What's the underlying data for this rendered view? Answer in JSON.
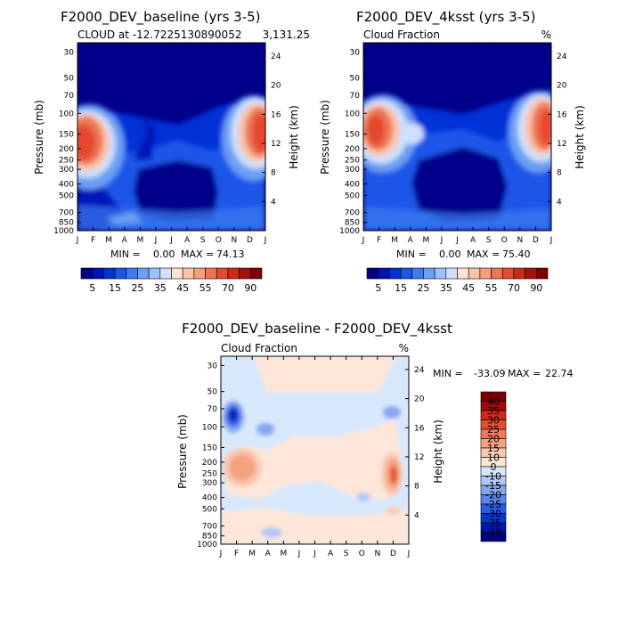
{
  "chart_data": [
    {
      "type": "heatmap",
      "title": "F2000_DEV_baseline (yrs 3-5)",
      "subtitle": "CLOUD at -12.7225130890052",
      "subtitle_right": "3,131.25",
      "ylabel": "Pressure (mb)",
      "ylabel_right": "Height (km)",
      "x_ticks": [
        "J",
        "F",
        "M",
        "A",
        "M",
        "J",
        "J",
        "A",
        "S",
        "O",
        "N",
        "D",
        "J"
      ],
      "y_ticks": [
        "30",
        "50",
        "70",
        "100",
        "150",
        "200",
        "250",
        "300",
        "400",
        "500",
        "700",
        "850",
        "1000"
      ],
      "y_ticks_right": [
        "24",
        "20",
        "16",
        "12",
        "8",
        "4"
      ],
      "stats": {
        "min_label": "MIN =",
        "min": "0.00",
        "max_label": "MAX =",
        "max": "74.13"
      },
      "colorbar": {
        "orientation": "horizontal",
        "labels": [
          "5",
          "15",
          "25",
          "35",
          "45",
          "55",
          "70",
          "90"
        ]
      },
      "features": [
        {
          "month": 1.0,
          "plev": 170,
          "value": 73
        },
        {
          "month": 11.6,
          "plev": 150,
          "value": 72
        }
      ]
    },
    {
      "type": "heatmap",
      "title": "F2000_DEV_4ksst (yrs 3-5)",
      "subtitle": "Cloud Fraction",
      "subtitle_right": "%",
      "ylabel": "Pressure (mb)",
      "ylabel_right": "Height (km)",
      "x_ticks": [
        "J",
        "F",
        "M",
        "A",
        "M",
        "J",
        "J",
        "A",
        "S",
        "O",
        "N",
        "D",
        "J"
      ],
      "y_ticks": [
        "30",
        "50",
        "70",
        "100",
        "150",
        "200",
        "250",
        "300",
        "400",
        "500",
        "700",
        "850",
        "1000"
      ],
      "y_ticks_right": [
        "24",
        "20",
        "16",
        "12",
        "8",
        "4"
      ],
      "stats": {
        "min_label": "MIN =",
        "min": "0.00",
        "max_label": "MAX =",
        "max": "75.40"
      },
      "colorbar": {
        "orientation": "horizontal",
        "labels": [
          "5",
          "15",
          "25",
          "35",
          "45",
          "55",
          "70",
          "90"
        ]
      },
      "features": [
        {
          "month": 1.0,
          "plev": 150,
          "value": 75
        },
        {
          "month": 11.8,
          "plev": 150,
          "value": 74
        }
      ]
    },
    {
      "type": "heatmap",
      "title": "F2000_DEV_baseline - F2000_DEV_4ksst",
      "subtitle": "Cloud Fraction",
      "subtitle_right": "%",
      "ylabel": "Pressure (mb)",
      "ylabel_right": "Height (km)",
      "x_ticks": [
        "J",
        "F",
        "M",
        "A",
        "M",
        "J",
        "J",
        "A",
        "S",
        "O",
        "N",
        "D",
        "J"
      ],
      "y_ticks": [
        "30",
        "50",
        "70",
        "100",
        "150",
        "200",
        "250",
        "300",
        "400",
        "500",
        "700",
        "850",
        "1000"
      ],
      "y_ticks_right": [
        "24",
        "20",
        "16",
        "12",
        "8",
        "4"
      ],
      "stats": {
        "min_label": "MIN =",
        "min": "-33.09",
        "max_label": "MAX =",
        "max": "22.74"
      },
      "colorbar": {
        "orientation": "vertical",
        "labels": [
          "40",
          "35",
          "30",
          "25",
          "20",
          "15",
          "10",
          "0",
          "-10",
          "-15",
          "-20",
          "-25",
          "-30",
          "-35",
          "-40"
        ]
      },
      "features": [
        {
          "month": 1.0,
          "plev": 75,
          "value": -30
        },
        {
          "month": 2.4,
          "plev": 230,
          "value": 18
        },
        {
          "month": 11.0,
          "plev": 250,
          "value": 22
        }
      ]
    }
  ],
  "colors": {
    "seq": [
      "#00008a",
      "#0012b8",
      "#0030d8",
      "#1a56e8",
      "#3c7cf0",
      "#6a9ff4",
      "#9cc0f8",
      "#cfe0fb",
      "#fde4d4",
      "#fac3a8",
      "#f59e7e",
      "#ee7456",
      "#e44a2e",
      "#cc2a16",
      "#a8100a",
      "#800000"
    ],
    "diff": [
      "#000080",
      "#0016b0",
      "#0a36d4",
      "#2a5ae6",
      "#5a84ee",
      "#86a6f2",
      "#b4c8f6",
      "#d8e8fc",
      "#fde6d8",
      "#fac8b0",
      "#f5a280",
      "#ee7a58",
      "#e4502e",
      "#cc2a12",
      "#a0080a",
      "#780000"
    ]
  }
}
